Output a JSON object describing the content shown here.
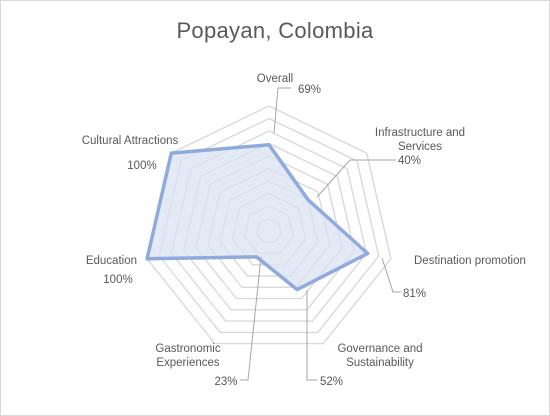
{
  "chart_data": {
    "type": "radar",
    "title": "Popayan, Colombia",
    "categories": [
      [
        "Overall"
      ],
      [
        "Infrastructure and",
        "Services"
      ],
      [
        "Destination promotion"
      ],
      [
        "Governance and",
        "Sustainability"
      ],
      [
        "Gastronomic",
        "Experiences"
      ],
      [
        "Education"
      ],
      [
        "Cultural Attractions"
      ]
    ],
    "values": [
      69,
      40,
      81,
      52,
      23,
      100,
      100
    ],
    "value_labels": [
      "69%",
      "40%",
      "81%",
      "52%",
      "23%",
      "100%",
      "100%"
    ],
    "rlim": [
      0,
      100
    ],
    "grid_levels": 10,
    "colors": {
      "grid": "#d9d9d9",
      "series_line": "#8faadc",
      "series_fill": "#dae3f3",
      "text": "#595959",
      "leader": "#a6a6a6"
    }
  }
}
